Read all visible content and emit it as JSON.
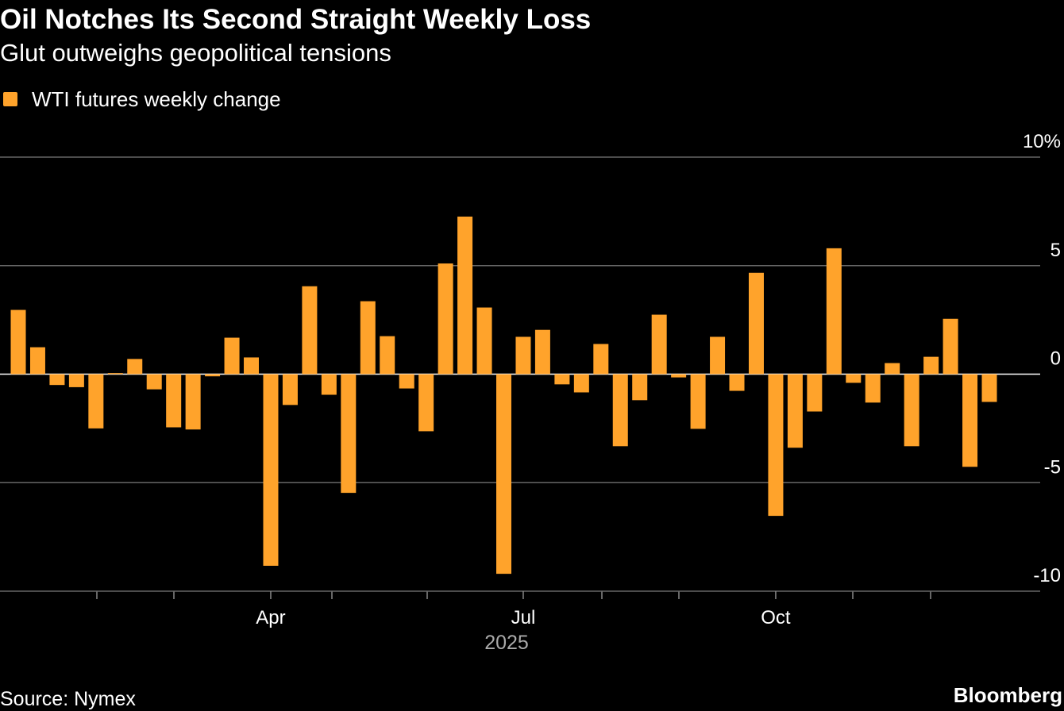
{
  "chart_data": {
    "type": "bar",
    "title": "Oil Notches Its Second Straight Weekly Loss",
    "subtitle": "Glut outweighs geopolitical tensions",
    "x_label": "2025",
    "source": "Source: Nymex",
    "brand": "Bloomberg",
    "categories": [
      null,
      null,
      null,
      null,
      null,
      null,
      null,
      null,
      null,
      null,
      null,
      null,
      null,
      "Apr",
      null,
      null,
      null,
      null,
      null,
      null,
      null,
      null,
      null,
      null,
      null,
      null,
      "Jul",
      null,
      null,
      null,
      null,
      null,
      null,
      null,
      null,
      null,
      null,
      null,
      null,
      "Oct",
      null,
      null,
      null,
      null,
      null,
      null,
      null,
      null,
      null,
      null,
      null
    ],
    "series": [
      {
        "name": "WTI futures weekly change",
        "color": "#ffa32b",
        "values": [
          2.96,
          1.24,
          -0.5,
          -0.6,
          -2.5,
          0.05,
          0.7,
          -0.7,
          -2.45,
          -2.55,
          -0.1,
          1.68,
          0.77,
          -8.83,
          -1.42,
          4.05,
          -0.95,
          -5.47,
          3.36,
          1.75,
          -0.66,
          -2.63,
          5.1,
          7.26,
          3.07,
          -9.2,
          1.72,
          2.04,
          -0.47,
          -0.84,
          1.39,
          -3.32,
          -1.2,
          2.74,
          -0.15,
          -2.52,
          1.72,
          -0.77,
          4.67,
          -6.53,
          -3.39,
          -1.72,
          5.8,
          -0.4,
          -1.31,
          0.51,
          -3.32,
          0.8,
          2.55,
          -4.27,
          -1.28
        ]
      }
    ],
    "ylim": [
      -10,
      10
    ],
    "yticks": [
      -10,
      -5,
      0,
      5,
      {
        "value": 10,
        "label": "10%"
      }
    ],
    "grid": true
  }
}
